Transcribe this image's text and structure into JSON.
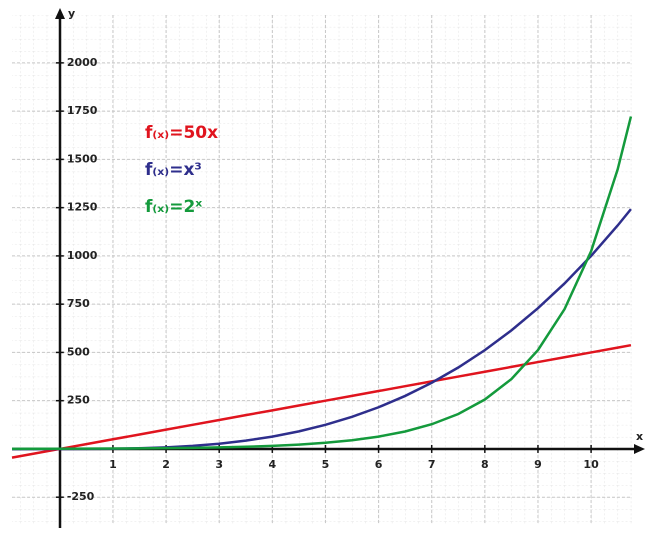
{
  "chart_data": {
    "type": "line",
    "x_label": "x",
    "y_label": "y",
    "x": [
      -0.9,
      -0.5,
      0,
      0.5,
      1,
      1.5,
      2,
      2.5,
      3,
      3.5,
      4,
      4.5,
      5,
      5.5,
      6,
      6.5,
      7,
      7.5,
      8,
      8.5,
      9,
      9.5,
      10,
      10.5,
      10.75
    ],
    "series": [
      {
        "name": "f₍ₓ₎=50x",
        "color": "#e0141e",
        "values": [
          -45,
          -25,
          0,
          25,
          50,
          75,
          100,
          125,
          150,
          175,
          200,
          225,
          250,
          275,
          300,
          325,
          350,
          375,
          400,
          425,
          450,
          475,
          500,
          525,
          537.5
        ]
      },
      {
        "name": "f₍ₓ₎=x³",
        "color": "#2e2e8c",
        "values": [
          -0.729,
          -0.125,
          0,
          0.125,
          1,
          3.375,
          8,
          15.625,
          27,
          42.875,
          64,
          91.125,
          125,
          166.375,
          216,
          274.625,
          343,
          421.875,
          512,
          614.125,
          729,
          857.375,
          1000,
          1157.625,
          1242.297
        ]
      },
      {
        "name": "f₍ₓ₎=2ˣ",
        "color": "#149a3c",
        "values": [
          0.536,
          0.707,
          1,
          1.414,
          2,
          2.828,
          4,
          5.657,
          8,
          11.314,
          16,
          22.627,
          32,
          45.255,
          64,
          90.51,
          128,
          181.02,
          256,
          362.04,
          512,
          724.08,
          1024,
          1448.15,
          1722.2
        ]
      }
    ],
    "xlim": [
      -0.9,
      10.77
    ],
    "ylim": [
      -394,
      2248
    ],
    "xticks": [
      1,
      2,
      3,
      4,
      5,
      6,
      7,
      8,
      9,
      10
    ],
    "yticks": [
      -250,
      250,
      500,
      750,
      1000,
      1250,
      1500,
      1750,
      2000
    ],
    "grid": true
  }
}
